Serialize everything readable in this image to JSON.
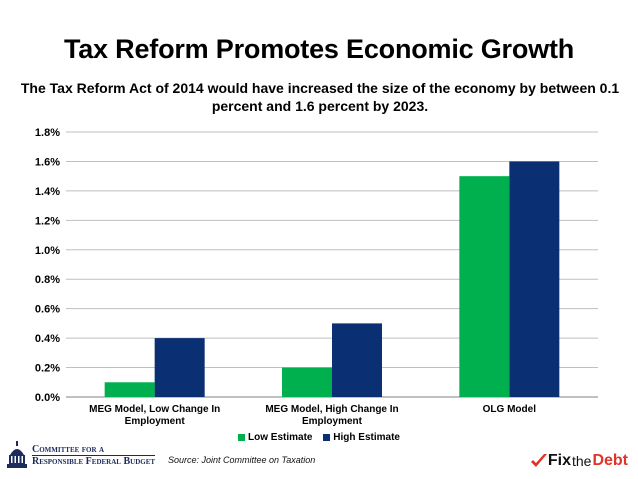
{
  "title": "Tax Reform Promotes Economic Growth",
  "subtitle": "The Tax Reform Act of 2014 would have increased the size of the economy by between 0.1 percent and 1.6 percent by 2023.",
  "source": "Source: Joint Committee on Taxation",
  "org": {
    "line1": "Committee for a",
    "line2": "Responsible Federal Budget"
  },
  "brand": {
    "fix": "Fix",
    "the": "the",
    "debt": "Debt"
  },
  "colors": {
    "low": "#00b04f",
    "high": "#0a2f73",
    "grid": "#bfbfbf",
    "brand_red": "#e0342b"
  },
  "chart_data": {
    "type": "bar",
    "categories": [
      [
        "MEG Model, Low Change In",
        "Employment"
      ],
      [
        "MEG Model, High Change In",
        "Employment"
      ],
      [
        "OLG Model"
      ]
    ],
    "series": [
      {
        "name": "Low Estimate",
        "values": [
          0.1,
          0.2,
          1.5
        ]
      },
      {
        "name": "High Estimate",
        "values": [
          0.4,
          0.5,
          1.6
        ]
      }
    ],
    "ylim": [
      0,
      1.8
    ],
    "yticks": [
      "0.0%",
      "0.2%",
      "0.4%",
      "0.6%",
      "0.8%",
      "1.0%",
      "1.2%",
      "1.4%",
      "1.6%",
      "1.8%"
    ],
    "ystep": 0.2,
    "grid": true,
    "legend_position": "bottom"
  }
}
